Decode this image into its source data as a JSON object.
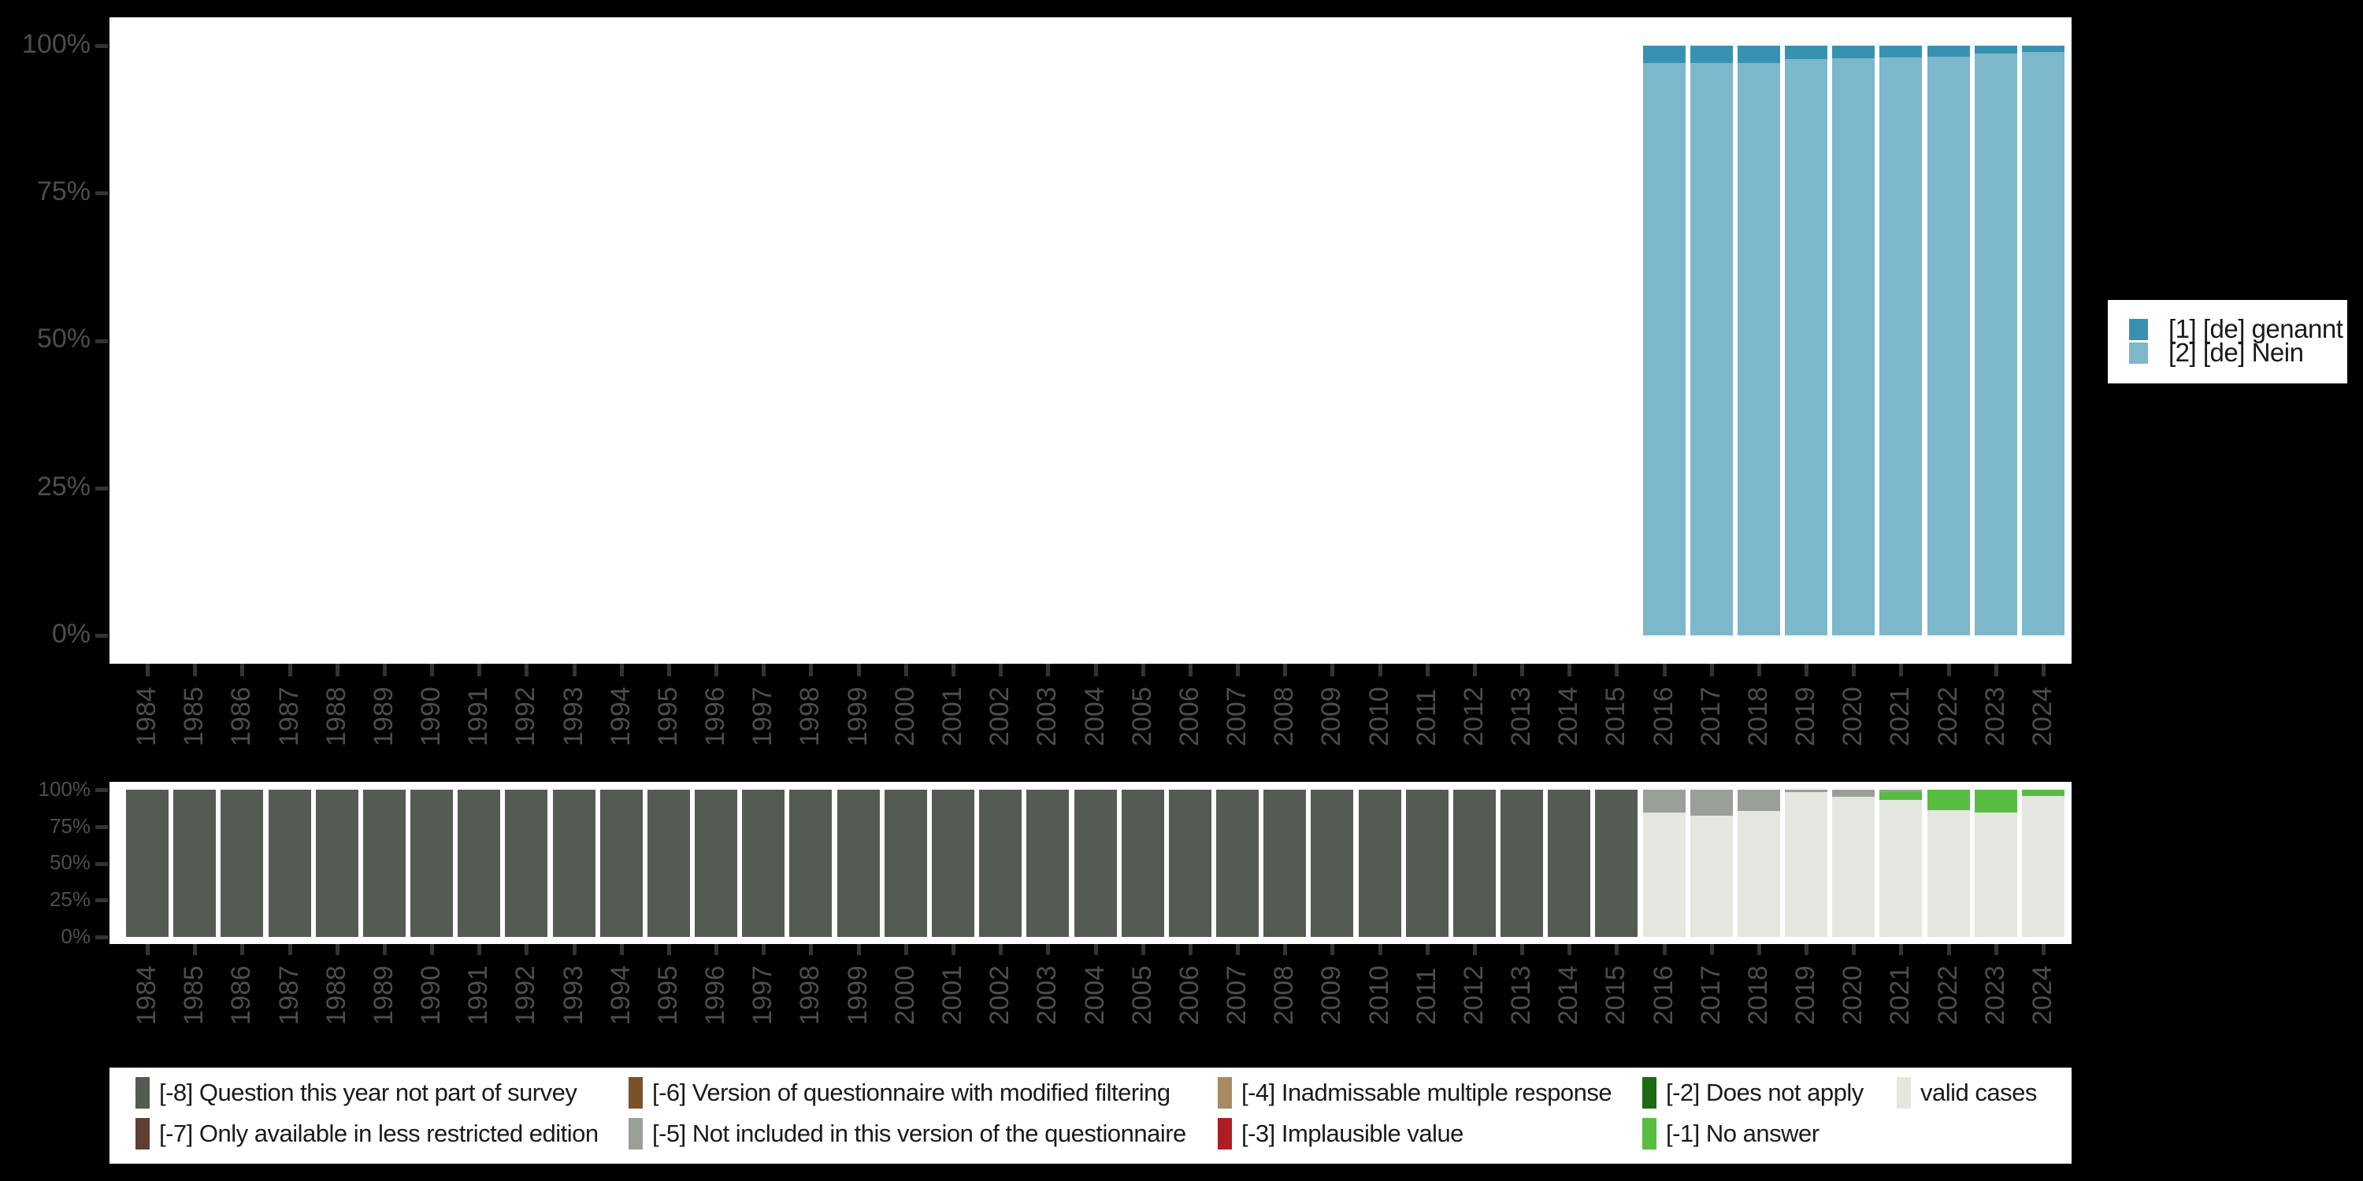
{
  "chart_data": [
    {
      "id": "responses",
      "type": "bar",
      "stacked": true,
      "unit": "percent",
      "title": "",
      "xlabel": "",
      "ylabel": "",
      "ylim": [
        0,
        100
      ],
      "grid": false,
      "legend_position": "right",
      "y_ticks": [
        "0%",
        "25%",
        "50%",
        "75%",
        "100%"
      ],
      "x_ticks": [
        "1984",
        "1985",
        "1986",
        "1987",
        "1988",
        "1989",
        "1990",
        "1991",
        "1992",
        "1993",
        "1994",
        "1995",
        "1996",
        "1997",
        "1998",
        "1999",
        "2000",
        "2001",
        "2002",
        "2003",
        "2004",
        "2005",
        "2006",
        "2007",
        "2008",
        "2009",
        "2010",
        "2011",
        "2012",
        "2013",
        "2014",
        "2015",
        "2016",
        "2017",
        "2018",
        "2019",
        "2020",
        "2021",
        "2022",
        "2023",
        "2024"
      ],
      "categories": [
        {
          "key": "v1",
          "label": "[1] [de] genannt",
          "color": "#3792B2"
        },
        {
          "key": "v2",
          "label": "[2] [de] Nein",
          "color": "#7CB7CB"
        }
      ],
      "bars": {
        "2016": [
          [
            "v1",
            3.0
          ],
          [
            "v2",
            97.0
          ]
        ],
        "2017": [
          [
            "v1",
            2.9
          ],
          [
            "v2",
            97.1
          ]
        ],
        "2018": [
          [
            "v1",
            3.0
          ],
          [
            "v2",
            97.0
          ]
        ],
        "2019": [
          [
            "v1",
            2.3
          ],
          [
            "v2",
            97.7
          ]
        ],
        "2020": [
          [
            "v1",
            2.2
          ],
          [
            "v2",
            97.8
          ]
        ],
        "2021": [
          [
            "v1",
            2.0
          ],
          [
            "v2",
            98.0
          ]
        ],
        "2022": [
          [
            "v1",
            1.9
          ],
          [
            "v2",
            98.1
          ]
        ],
        "2023": [
          [
            "v1",
            1.3
          ],
          [
            "v2",
            98.7
          ]
        ],
        "2024": [
          [
            "v1",
            1.1
          ],
          [
            "v2",
            98.9
          ]
        ]
      }
    },
    {
      "id": "missing",
      "type": "bar",
      "stacked": true,
      "unit": "percent",
      "title": "",
      "xlabel": "",
      "ylabel": "",
      "ylim": [
        0,
        100
      ],
      "grid": false,
      "legend_position": "bottom",
      "y_ticks": [
        "0%",
        "25%",
        "50%",
        "75%",
        "100%"
      ],
      "x_ticks": [
        "1984",
        "1985",
        "1986",
        "1987",
        "1988",
        "1989",
        "1990",
        "1991",
        "1992",
        "1993",
        "1994",
        "1995",
        "1996",
        "1997",
        "1998",
        "1999",
        "2000",
        "2001",
        "2002",
        "2003",
        "2004",
        "2005",
        "2006",
        "2007",
        "2008",
        "2009",
        "2010",
        "2011",
        "2012",
        "2013",
        "2014",
        "2015",
        "2016",
        "2017",
        "2018",
        "2019",
        "2020",
        "2021",
        "2022",
        "2023",
        "2024"
      ],
      "categories": [
        {
          "key": "-8",
          "label": "[-8] Question this year not part of survey",
          "color": "#545B53"
        },
        {
          "key": "-7",
          "label": "[-7] Only available in less restricted edition",
          "color": "#5D4031"
        },
        {
          "key": "-6",
          "label": "[-6] Version of questionnaire with modified filtering",
          "color": "#7B512C"
        },
        {
          "key": "-5",
          "label": "[-5] Not included in this version of the questionnaire",
          "color": "#9AA099"
        },
        {
          "key": "-4",
          "label": "[-4] Inadmissable multiple response",
          "color": "#A78A62"
        },
        {
          "key": "-3",
          "label": "[-3] Implausible value",
          "color": "#AD1D22"
        },
        {
          "key": "-2",
          "label": "[-2] Does not apply",
          "color": "#1E6914"
        },
        {
          "key": "-1",
          "label": "[-1] No answer",
          "color": "#57BD41"
        },
        {
          "key": "valid",
          "label": "valid cases",
          "color": "#E3E7E0"
        }
      ],
      "bars": {
        "1984": [
          [
            "-8",
            100
          ]
        ],
        "1985": [
          [
            "-8",
            100
          ]
        ],
        "1986": [
          [
            "-8",
            100
          ]
        ],
        "1987": [
          [
            "-8",
            100
          ]
        ],
        "1988": [
          [
            "-8",
            100
          ]
        ],
        "1989": [
          [
            "-8",
            100
          ]
        ],
        "1990": [
          [
            "-8",
            100
          ]
        ],
        "1991": [
          [
            "-8",
            100
          ]
        ],
        "1992": [
          [
            "-8",
            100
          ]
        ],
        "1993": [
          [
            "-8",
            100
          ]
        ],
        "1994": [
          [
            "-8",
            100
          ]
        ],
        "1995": [
          [
            "-8",
            100
          ]
        ],
        "1996": [
          [
            "-8",
            100
          ]
        ],
        "1997": [
          [
            "-8",
            100
          ]
        ],
        "1998": [
          [
            "-8",
            100
          ]
        ],
        "1999": [
          [
            "-8",
            100
          ]
        ],
        "2000": [
          [
            "-8",
            100
          ]
        ],
        "2001": [
          [
            "-8",
            100
          ]
        ],
        "2002": [
          [
            "-8",
            100
          ]
        ],
        "2003": [
          [
            "-8",
            100
          ]
        ],
        "2004": [
          [
            "-8",
            100
          ]
        ],
        "2005": [
          [
            "-8",
            100
          ]
        ],
        "2006": [
          [
            "-8",
            100
          ]
        ],
        "2007": [
          [
            "-8",
            100
          ]
        ],
        "2008": [
          [
            "-8",
            100
          ]
        ],
        "2009": [
          [
            "-8",
            100
          ]
        ],
        "2010": [
          [
            "-8",
            100
          ]
        ],
        "2011": [
          [
            "-8",
            100
          ]
        ],
        "2012": [
          [
            "-8",
            100
          ]
        ],
        "2013": [
          [
            "-8",
            100
          ]
        ],
        "2014": [
          [
            "-8",
            100
          ]
        ],
        "2015": [
          [
            "-8",
            100
          ]
        ],
        "2016": [
          [
            "-5",
            15.3
          ],
          [
            "valid",
            84.7
          ]
        ],
        "2017": [
          [
            "-5",
            17.9
          ],
          [
            "valid",
            82.1
          ]
        ],
        "2018": [
          [
            "-5",
            14.4
          ],
          [
            "valid",
            85.6
          ]
        ],
        "2019": [
          [
            "-5",
            1.4
          ],
          [
            "valid",
            98.6
          ]
        ],
        "2020": [
          [
            "-5",
            4.7
          ],
          [
            "valid",
            95.3
          ]
        ],
        "2021": [
          [
            "-5",
            1.8
          ],
          [
            "-1",
            5.3
          ],
          [
            "valid",
            92.9
          ]
        ],
        "2022": [
          [
            "-1",
            13.9
          ],
          [
            "valid",
            86.1
          ]
        ],
        "2023": [
          [
            "-1",
            15.3
          ],
          [
            "valid",
            84.7
          ]
        ],
        "2024": [
          [
            "-1",
            4.1
          ],
          [
            "valid",
            95.9
          ]
        ]
      }
    }
  ],
  "legend_top": {
    "items": [
      "[1] [de] genannt",
      "[2] [de] Nein"
    ]
  },
  "legend_bottom": {
    "columns": [
      [
        "-8",
        "-7"
      ],
      [
        "-6",
        "-5"
      ],
      [
        "-4",
        "-3"
      ],
      [
        "-2",
        "-1"
      ],
      [
        "valid"
      ]
    ]
  }
}
